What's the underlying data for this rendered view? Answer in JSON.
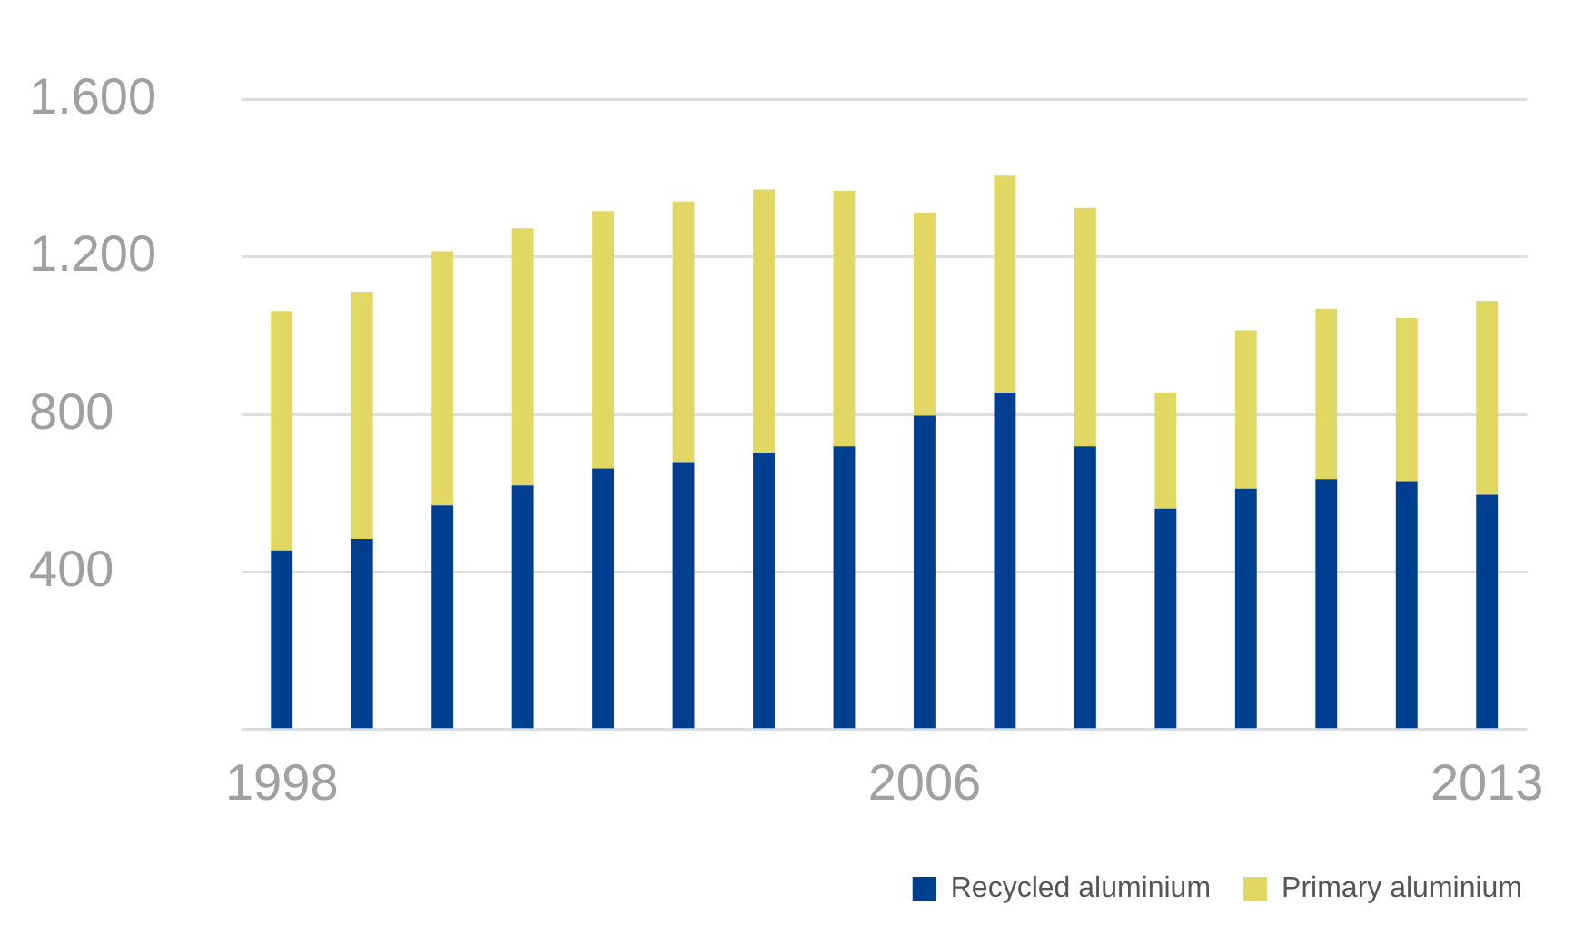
{
  "chart_data": {
    "type": "bar",
    "stacked": true,
    "categories": [
      "1998",
      null,
      null,
      null,
      null,
      null,
      null,
      null,
      "2006",
      null,
      null,
      null,
      null,
      null,
      null,
      "2013"
    ],
    "series": [
      {
        "name": "Recycled aluminium",
        "color": "#003f8f",
        "values": [
          455,
          484,
          569,
          620,
          663,
          679,
          703,
          719,
          797,
          856,
          719,
          561,
          612,
          636,
          631,
          596
        ]
      },
      {
        "name": "Primary aluminium",
        "color": "#e0d862",
        "values": [
          608,
          628,
          646,
          653,
          654,
          662,
          669,
          649,
          516,
          551,
          606,
          295,
          402,
          433,
          414,
          493
        ]
      }
    ],
    "ylim": [
      0,
      1600
    ],
    "yticks": [
      {
        "value": 0,
        "label": null
      },
      {
        "value": 400,
        "label": "400"
      },
      {
        "value": 800,
        "label": "800"
      },
      {
        "value": 1200,
        "label": "1.200"
      },
      {
        "value": 1600,
        "label": "1.600"
      }
    ],
    "grid": "y",
    "legend": "bottom right"
  }
}
